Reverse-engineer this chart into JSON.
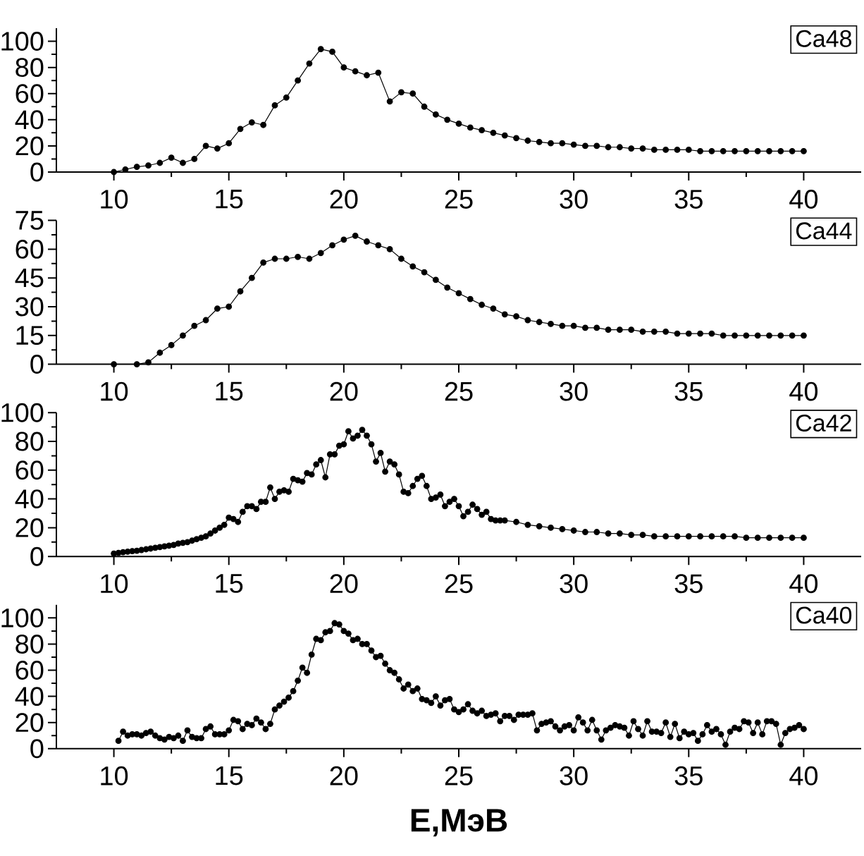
{
  "chart_data": [
    {
      "type": "line",
      "marker": "circle",
      "line_style": "solid",
      "legend": "top right",
      "xlim": [
        7.5,
        42.5
      ],
      "xticks": [
        10,
        15,
        20,
        25,
        30,
        35,
        40
      ],
      "ylim": [
        0,
        110
      ],
      "yticks": [
        0,
        20,
        40,
        60,
        80,
        100
      ],
      "series": [
        {
          "name": "Ca48",
          "color": "#000000",
          "x": [
            10,
            10.5,
            11,
            11.5,
            12,
            12.5,
            13,
            13.5,
            14,
            14.5,
            15,
            15.5,
            16,
            16.5,
            17,
            17.5,
            18,
            18.5,
            19,
            19.5,
            20,
            20.5,
            21,
            21.5,
            22,
            22.5,
            23,
            23.5,
            24,
            24.5,
            25,
            25.5,
            26,
            26.5,
            27,
            27.5,
            28,
            28.5,
            29,
            29.5,
            30,
            30.5,
            31,
            31.5,
            32,
            32.5,
            33,
            33.5,
            34,
            34.5,
            35,
            35.5,
            36,
            36.5,
            37,
            37.5,
            38,
            38.5,
            39,
            39.5,
            40
          ],
          "values": [
            0,
            2,
            4,
            5,
            7,
            11,
            7,
            10,
            20,
            18,
            22,
            33,
            38,
            36,
            51,
            57,
            70,
            83,
            94,
            92,
            80,
            77,
            74,
            76,
            54,
            61,
            60,
            50,
            44,
            40,
            37,
            34,
            32,
            30,
            28,
            26,
            24,
            23,
            22,
            22,
            21,
            20,
            20,
            19,
            19,
            18,
            18,
            17,
            17,
            17,
            17,
            16,
            16,
            16,
            16,
            16,
            16,
            16,
            16,
            16,
            16
          ]
        }
      ]
    },
    {
      "type": "line",
      "marker": "circle",
      "line_style": "solid",
      "legend": "top right",
      "xlim": [
        7.5,
        42.5
      ],
      "xticks": [
        10,
        15,
        20,
        25,
        30,
        35,
        40
      ],
      "ylim": [
        0,
        75
      ],
      "yticks": [
        0,
        15,
        30,
        45,
        60,
        75
      ],
      "series": [
        {
          "name": "Ca44",
          "color": "#000000",
          "x": [
            10,
            11,
            11.5,
            12,
            12.5,
            13,
            13.5,
            14,
            14.5,
            15,
            15.5,
            16,
            16.5,
            17,
            17.5,
            18,
            18.5,
            19,
            19.5,
            20,
            20.5,
            21,
            21.5,
            22,
            22.5,
            23,
            23.5,
            24,
            24.5,
            25,
            25.5,
            26,
            26.5,
            27,
            27.5,
            28,
            28.5,
            29,
            29.5,
            30,
            30.5,
            31,
            31.5,
            32,
            32.5,
            33,
            33.5,
            34,
            34.5,
            35,
            35.5,
            36,
            36.5,
            37,
            37.5,
            38,
            38.5,
            39,
            39.5,
            40
          ],
          "values": [
            0,
            0,
            1,
            6,
            10,
            15,
            20,
            23,
            29,
            30,
            38,
            45,
            53,
            55,
            55,
            56,
            55,
            58,
            62,
            65,
            67,
            64,
            62,
            60,
            55,
            51,
            48,
            44,
            40,
            37,
            34,
            31,
            29,
            26,
            25,
            23,
            22,
            21,
            20,
            20,
            19,
            19,
            18,
            18,
            18,
            17,
            17,
            17,
            16,
            16,
            16,
            16,
            15,
            15,
            15,
            15,
            15,
            15,
            15,
            15
          ]
        }
      ]
    },
    {
      "type": "line",
      "marker": "circle",
      "line_style": "solid",
      "legend": "top right",
      "xlim": [
        7.5,
        42.5
      ],
      "xticks": [
        10,
        15,
        20,
        25,
        30,
        35,
        40
      ],
      "ylim": [
        0,
        100
      ],
      "yticks": [
        0,
        20,
        40,
        60,
        80,
        100
      ],
      "series": [
        {
          "name": "Ca42",
          "color": "#000000",
          "x": [
            10,
            10.2,
            10.4,
            10.6,
            10.8,
            11,
            11.2,
            11.4,
            11.6,
            11.8,
            12,
            12.2,
            12.4,
            12.6,
            12.8,
            13,
            13.2,
            13.4,
            13.6,
            13.8,
            14,
            14.2,
            14.4,
            14.6,
            14.8,
            15,
            15.2,
            15.4,
            15.6,
            15.8,
            16,
            16.2,
            16.4,
            16.6,
            16.8,
            17,
            17.2,
            17.4,
            17.6,
            17.8,
            18,
            18.2,
            18.4,
            18.6,
            18.8,
            19,
            19.2,
            19.4,
            19.6,
            19.8,
            20,
            20.2,
            20.4,
            20.6,
            20.8,
            21,
            21.2,
            21.4,
            21.6,
            21.8,
            22,
            22.2,
            22.4,
            22.6,
            22.8,
            23,
            23.2,
            23.4,
            23.6,
            23.8,
            24,
            24.2,
            24.4,
            24.6,
            24.8,
            25,
            25.2,
            25.4,
            25.6,
            25.8,
            26,
            26.2,
            26.4,
            26.6,
            26.8,
            27,
            27.5,
            28,
            28.5,
            29,
            29.5,
            30,
            30.5,
            31,
            31.5,
            32,
            32.5,
            33,
            33.5,
            34,
            34.5,
            35,
            35.5,
            36,
            36.5,
            37,
            37.5,
            38,
            38.5,
            39,
            39.5,
            40
          ],
          "values": [
            2,
            2.5,
            3,
            3.3,
            3.7,
            4,
            4.5,
            5,
            5.5,
            6,
            6.5,
            7,
            7.5,
            8,
            9,
            9.5,
            10,
            11,
            12,
            13,
            14,
            16,
            18,
            20,
            22,
            27,
            26,
            24,
            31,
            35,
            35,
            33,
            38,
            38,
            48,
            40,
            45,
            46,
            45,
            54,
            53,
            52,
            58,
            57,
            64,
            67,
            55,
            71,
            71,
            77,
            78,
            87,
            82,
            84,
            88,
            84,
            78,
            66,
            72,
            59,
            66,
            64,
            57,
            45,
            44,
            49,
            54,
            56,
            49,
            40,
            41,
            43,
            35,
            38,
            40,
            35,
            28,
            31,
            36,
            33,
            29,
            31,
            26,
            25,
            25,
            25,
            24,
            22,
            21,
            20,
            19,
            18,
            17,
            17,
            16,
            16,
            15,
            15,
            14,
            14,
            14,
            14,
            14,
            14,
            14,
            14,
            13,
            13,
            13,
            13,
            13,
            13
          ]
        }
      ]
    },
    {
      "type": "line",
      "marker": "circle",
      "line_style": "solid",
      "legend": "top right",
      "xlabel": "E,МэВ",
      "xlim": [
        7.5,
        42.5
      ],
      "xticks": [
        10,
        15,
        20,
        25,
        30,
        35,
        40
      ],
      "ylim": [
        0,
        110
      ],
      "yticks": [
        0,
        20,
        40,
        60,
        80,
        100
      ],
      "series": [
        {
          "name": "Ca40",
          "color": "#000000",
          "x": [
            10.2,
            10.4,
            10.6,
            10.8,
            11,
            11.2,
            11.4,
            11.6,
            11.8,
            12,
            12.2,
            12.4,
            12.6,
            12.8,
            13,
            13.2,
            13.4,
            13.6,
            13.8,
            14,
            14.2,
            14.4,
            14.6,
            14.8,
            15,
            15.2,
            15.4,
            15.6,
            15.8,
            16,
            16.2,
            16.4,
            16.6,
            16.8,
            17,
            17.2,
            17.4,
            17.6,
            17.8,
            18,
            18.2,
            18.4,
            18.6,
            18.8,
            19,
            19.2,
            19.4,
            19.6,
            19.8,
            20,
            20.2,
            20.4,
            20.6,
            20.8,
            21,
            21.2,
            21.4,
            21.6,
            21.8,
            22,
            22.2,
            22.4,
            22.6,
            22.8,
            23,
            23.2,
            23.4,
            23.6,
            23.8,
            24,
            24.2,
            24.4,
            24.6,
            24.8,
            25,
            25.2,
            25.4,
            25.6,
            25.8,
            26,
            26.2,
            26.4,
            26.6,
            26.8,
            27,
            27.2,
            27.4,
            27.6,
            27.8,
            28,
            28.2,
            28.4,
            28.6,
            28.8,
            29,
            29.2,
            29.4,
            29.6,
            29.8,
            30,
            30.2,
            30.4,
            30.6,
            30.8,
            31,
            31.2,
            31.4,
            31.6,
            31.8,
            32,
            32.2,
            32.4,
            32.6,
            32.8,
            33,
            33.2,
            33.4,
            33.6,
            33.8,
            34,
            34.2,
            34.4,
            34.6,
            34.8,
            35,
            35.2,
            35.4,
            35.6,
            35.8,
            36,
            36.2,
            36.4,
            36.6,
            36.8,
            37,
            37.2,
            37.4,
            37.6,
            37.8,
            38,
            38.2,
            38.4,
            38.6,
            38.8,
            39,
            39.2,
            39.4,
            39.6,
            39.8,
            40
          ],
          "values": [
            6,
            13,
            10,
            11,
            11,
            10,
            12,
            13,
            10,
            8,
            7,
            9,
            8,
            10,
            6,
            14,
            9,
            8,
            8,
            15,
            17,
            11,
            11,
            11,
            14,
            22,
            21,
            15,
            19,
            18,
            23,
            20,
            15,
            19,
            30,
            33,
            36,
            39,
            44,
            52,
            62,
            58,
            72,
            84,
            83,
            89,
            90,
            96,
            95,
            90,
            88,
            83,
            84,
            80,
            80,
            75,
            70,
            71,
            65,
            60,
            58,
            53,
            46,
            49,
            44,
            46,
            38,
            37,
            35,
            40,
            33,
            37,
            38,
            30,
            28,
            30,
            34,
            29,
            27,
            29,
            25,
            26,
            27,
            21,
            25,
            25,
            22,
            26,
            26,
            26,
            27,
            14,
            19,
            20,
            21,
            17,
            14,
            17,
            18,
            14,
            24,
            20,
            14,
            22,
            14,
            7,
            14,
            16,
            18,
            17,
            16,
            10,
            21,
            15,
            10,
            21,
            13,
            13,
            12,
            20,
            9,
            19,
            8,
            13,
            11,
            12,
            6,
            11,
            18,
            13,
            15,
            11,
            3,
            13,
            16,
            15,
            21,
            20,
            12,
            20,
            11,
            21,
            21,
            19,
            3,
            12,
            15,
            16,
            18,
            15
          ]
        }
      ]
    }
  ]
}
